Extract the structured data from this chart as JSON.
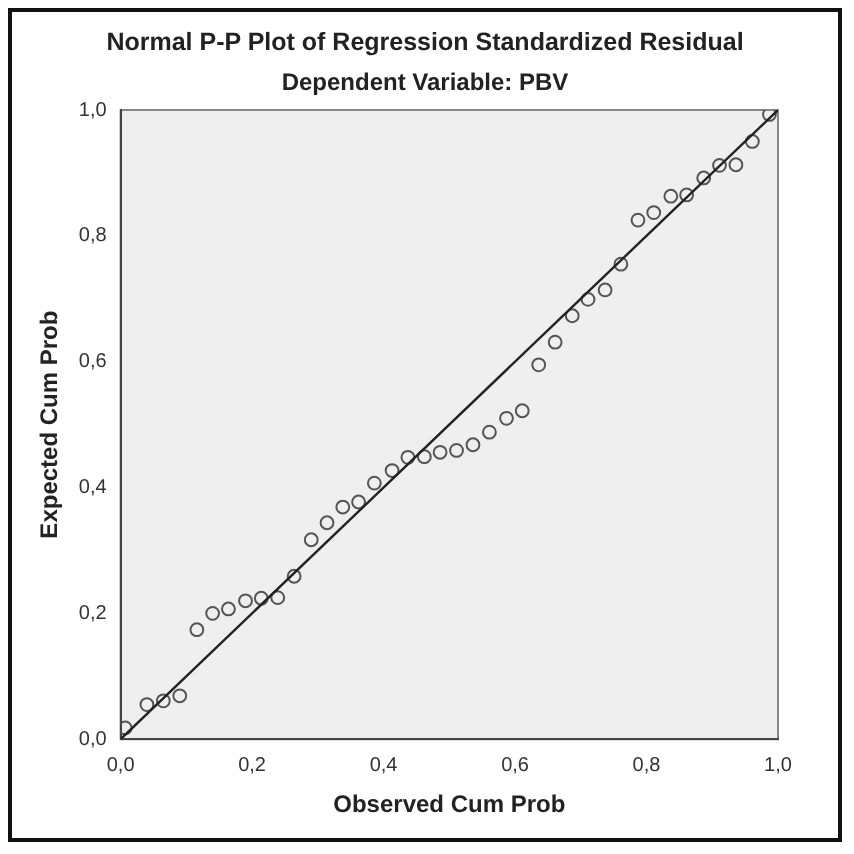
{
  "chart_data": {
    "type": "scatter",
    "title": "Normal P-P Plot of Regression Standardized Residual",
    "subtitle": "Dependent Variable: PBV",
    "xlabel": "Observed Cum Prob",
    "ylabel": "Expected Cum Prob",
    "grid": false,
    "legend": false,
    "xlim": [
      0,
      1
    ],
    "ylim": [
      0,
      1
    ],
    "xticks": [
      {
        "value": 0,
        "label": "0,0"
      },
      {
        "value": 0.2,
        "label": "0,2"
      },
      {
        "value": 0.4,
        "label": "0,4"
      },
      {
        "value": 0.6,
        "label": "0,6"
      },
      {
        "value": 0.8,
        "label": "0,8"
      },
      {
        "value": 1,
        "label": "1,0"
      }
    ],
    "yticks": [
      {
        "value": 0,
        "label": "0,0"
      },
      {
        "value": 0.2,
        "label": "0,2"
      },
      {
        "value": 0.4,
        "label": "0,4"
      },
      {
        "value": 0.6,
        "label": "0,6"
      },
      {
        "value": 0.8,
        "label": "0,8"
      },
      {
        "value": 1,
        "label": "1,0"
      }
    ],
    "series": [
      {
        "marker": "circle",
        "color": "#555555",
        "x": [
          0.007,
          0.04,
          0.065,
          0.09,
          0.116,
          0.14,
          0.164,
          0.19,
          0.214,
          0.239,
          0.264,
          0.29,
          0.314,
          0.338,
          0.362,
          0.386,
          0.413,
          0.437,
          0.462,
          0.486,
          0.511,
          0.536,
          0.561,
          0.587,
          0.611,
          0.636,
          0.661,
          0.687,
          0.711,
          0.737,
          0.761,
          0.787,
          0.811,
          0.837,
          0.861,
          0.887,
          0.911,
          0.936,
          0.961,
          0.987
        ],
        "values": [
          0.018,
          0.055,
          0.061,
          0.069,
          0.174,
          0.2,
          0.207,
          0.22,
          0.224,
          0.225,
          0.259,
          0.317,
          0.344,
          0.369,
          0.377,
          0.407,
          0.427,
          0.448,
          0.449,
          0.456,
          0.459,
          0.468,
          0.488,
          0.51,
          0.522,
          0.595,
          0.631,
          0.673,
          0.699,
          0.714,
          0.755,
          0.825,
          0.837,
          0.863,
          0.865,
          0.892,
          0.912,
          0.913,
          0.95,
          0.993
        ]
      },
      {
        "type": "line",
        "marker": "none",
        "color": "#222222",
        "x": [
          0,
          1
        ],
        "values": [
          0,
          1
        ]
      }
    ]
  }
}
